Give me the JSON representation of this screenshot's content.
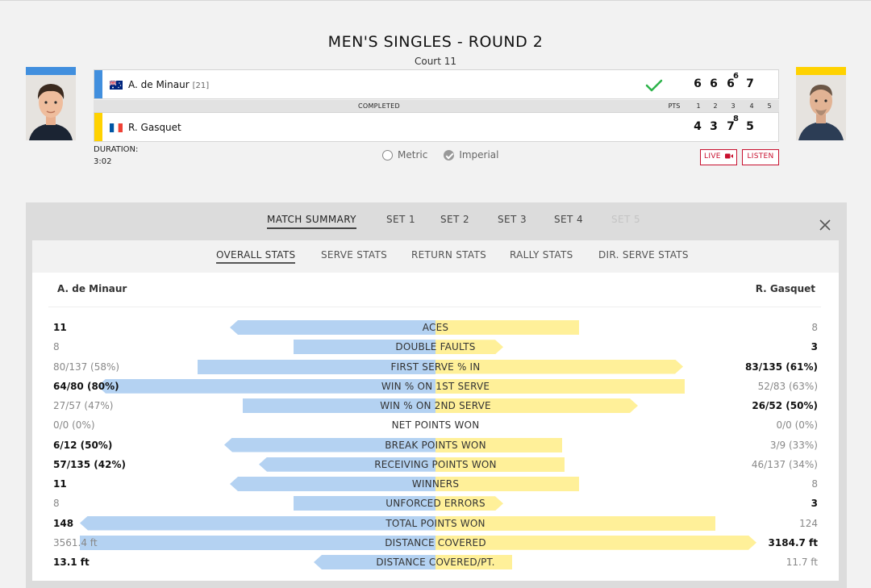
{
  "header": {
    "title": "MEN'S SINGLES - ROUND 2",
    "court": "Court 11"
  },
  "players": [
    {
      "name": "A. de Minaur",
      "seed": "[21]",
      "country": "AUS",
      "accent": "#418fde",
      "scores": [
        {
          "g": "6",
          "tb": ""
        },
        {
          "g": "6",
          "tb": ""
        },
        {
          "g": "6",
          "tb": "6"
        },
        {
          "g": "7",
          "tb": ""
        }
      ],
      "winner": true
    },
    {
      "name": "R. Gasquet",
      "seed": "",
      "country": "FRA",
      "accent": "#ffd200",
      "scores": [
        {
          "g": "4",
          "tb": ""
        },
        {
          "g": "3",
          "tb": ""
        },
        {
          "g": "7",
          "tb": "8"
        },
        {
          "g": "5",
          "tb": ""
        }
      ],
      "winner": false
    }
  ],
  "status": {
    "label": "COMPLETED",
    "cols": [
      "PTS",
      "1",
      "2",
      "3",
      "4",
      "5"
    ]
  },
  "duration": {
    "label": "DURATION:",
    "value": "3:02"
  },
  "units": {
    "metric": "Metric",
    "imperial": "Imperial",
    "selected": "imperial"
  },
  "buttons": {
    "live": "LIVE",
    "listen": "LISTEN"
  },
  "set_tabs": [
    {
      "label": "MATCH SUMMARY",
      "state": "active"
    },
    {
      "label": "SET 1",
      "state": "normal"
    },
    {
      "label": "SET 2",
      "state": "normal"
    },
    {
      "label": "SET 3",
      "state": "normal"
    },
    {
      "label": "SET 4",
      "state": "normal"
    },
    {
      "label": "SET 5",
      "state": "disabled"
    }
  ],
  "stat_tabs": [
    {
      "label": "OVERALL STATS",
      "active": true
    },
    {
      "label": "SERVE STATS",
      "active": false
    },
    {
      "label": "RETURN STATS",
      "active": false
    },
    {
      "label": "RALLY STATS",
      "active": false
    },
    {
      "label": "DIR. SERVE STATS",
      "active": false
    }
  ],
  "stats_header": {
    "left_player": "A. de Minaur",
    "right_player": "R. Gasquet"
  },
  "stats": [
    {
      "label": "ACES",
      "left": "11",
      "right": "8",
      "lead": "left",
      "left_share": 0.579,
      "right_share": 0.421
    },
    {
      "label": "DOUBLE FAULTS",
      "left": "8",
      "right": "3",
      "lead": "right",
      "left_share": 0.4,
      "right_share": 0.199
    },
    {
      "label": "FIRST SERVE % IN",
      "left": "80/137 (58%)",
      "right": "83/135 (61%)",
      "lead": "right",
      "left_share": 0.669,
      "right_share": 0.726
    },
    {
      "label": "WIN % ON 1ST SERVE",
      "left": "64/80 (80%)",
      "right": "52/83 (63%)",
      "lead": "left",
      "left_share": 0.95,
      "right_share": 0.731
    },
    {
      "label": "WIN % ON 2ND SERVE",
      "left": "27/57 (47%)",
      "right": "26/52 (50%)",
      "lead": "right",
      "left_share": 0.542,
      "right_share": 0.594
    },
    {
      "label": "NET POINTS WON",
      "left": "0/0 (0%)",
      "right": "0/0 (0%)",
      "lead": "none",
      "left_share": 0,
      "right_share": 0
    },
    {
      "label": "BREAK POINTS WON",
      "left": "6/12 (50%)",
      "right": "3/9 (33%)",
      "lead": "left",
      "left_share": 0.593,
      "right_share": 0.372
    },
    {
      "label": "RECEIVING POINTS WON",
      "left": "57/135 (42%)",
      "right": "46/137 (34%)",
      "lead": "left",
      "left_share": 0.497,
      "right_share": 0.379
    },
    {
      "label": "WINNERS",
      "left": "11",
      "right": "8",
      "lead": "left",
      "left_share": 0.579,
      "right_share": 0.421
    },
    {
      "label": "UNFORCED ERRORS",
      "left": "8",
      "right": "3",
      "lead": "right",
      "left_share": 0.4,
      "right_share": 0.199
    },
    {
      "label": "TOTAL POINTS WON",
      "left": "148",
      "right": "124",
      "lead": "left",
      "left_share": 1.0,
      "right_share": 0.82
    },
    {
      "label": "DISTANCE COVERED",
      "left": "3561.4 ft",
      "right": "3184.7 ft",
      "lead": "right",
      "left_share": 1.0,
      "right_share": 0.94
    },
    {
      "label": "DISTANCE COVERED/PT.",
      "left": "13.1 ft",
      "right": "11.7 ft",
      "lead": "left",
      "left_share": 0.343,
      "right_share": 0.225
    }
  ],
  "colors": {
    "left_bar": "#b4d2f2",
    "right_bar": "#fff099",
    "check": "#2db34a",
    "live": "#c8102e"
  }
}
